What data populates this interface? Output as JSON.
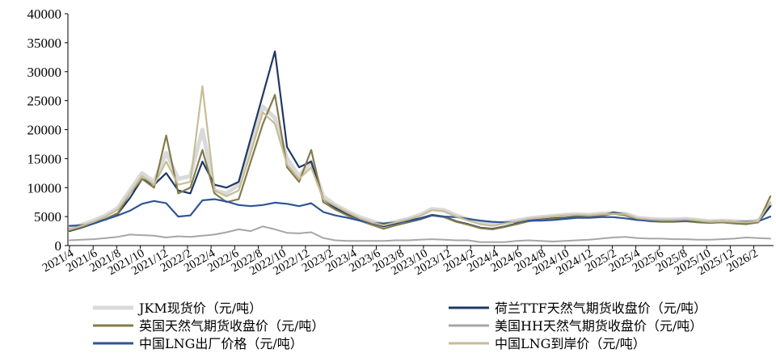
{
  "chart_data": {
    "type": "line",
    "title": "",
    "xlabel": "",
    "ylabel": "",
    "unit": "元/吨",
    "ylim": [
      0,
      40000
    ],
    "y_ticks": [
      "0",
      "5000",
      "10000",
      "15000",
      "20000",
      "25000",
      "30000",
      "35000",
      "40000"
    ],
    "x_tick_labels": [
      "2021/4",
      "2021/6",
      "2021/8",
      "2021/10",
      "2021/12",
      "2022/2",
      "2022/4",
      "2022/6",
      "2022/8",
      "2022/10",
      "2022/12",
      "2023/2",
      "2023/4",
      "2023/6",
      "2023/8",
      "2023/10",
      "2023/12",
      "2024/2",
      "2024/4",
      "2024/6",
      "2024/8",
      "2024/10",
      "2024/12",
      "2025/2",
      "2025/4",
      "2025/6",
      "2025/8",
      "2025/10",
      "2025/12",
      "2026/2"
    ],
    "x": [
      "2021/4",
      "2021/5",
      "2021/6",
      "2021/7",
      "2021/8",
      "2021/9",
      "2021/10",
      "2021/11",
      "2021/12",
      "2022/1",
      "2022/2",
      "2022/3",
      "2022/4",
      "2022/5",
      "2022/6",
      "2022/7",
      "2022/8",
      "2022/9",
      "2022/10",
      "2022/11",
      "2022/12",
      "2023/1",
      "2023/2",
      "2023/3",
      "2023/4",
      "2023/5",
      "2023/6",
      "2023/7",
      "2023/8",
      "2023/9",
      "2023/10",
      "2023/11",
      "2023/12",
      "2024/1",
      "2024/2",
      "2024/3",
      "2024/4",
      "2024/5",
      "2024/6",
      "2024/7",
      "2024/8",
      "2024/9",
      "2024/10",
      "2024/11",
      "2024/12",
      "2025/1",
      "2025/2",
      "2025/3",
      "2025/4",
      "2025/5",
      "2025/6",
      "2025/7",
      "2025/8",
      "2025/9",
      "2025/10",
      "2025/11",
      "2025/12",
      "2026/1",
      "2026/2"
    ],
    "series": [
      {
        "name": "JKM现货价（元/吨）",
        "color": "#d9d9d9",
        "width": 5,
        "values": [
          2900,
          3600,
          4300,
          5200,
          6500,
          9500,
          12500,
          11000,
          16000,
          11500,
          12000,
          20000,
          9500,
          9000,
          10500,
          17000,
          24000,
          22000,
          15000,
          12000,
          14500,
          8500,
          7000,
          5900,
          4900,
          4200,
          3700,
          4100,
          4600,
          5300,
          6300,
          6100,
          5200,
          4500,
          3900,
          3600,
          4000,
          4300,
          4700,
          4900,
          5100,
          5300,
          5400,
          5300,
          5500,
          5600,
          5500,
          4800,
          4600,
          4500,
          4500,
          4600,
          4400,
          4200,
          4300,
          4200,
          4100,
          4300,
          7000
        ]
      },
      {
        "name": "荷兰TTF天然气期货收盘价（元/吨）",
        "color": "#1f3864",
        "width": 2.2,
        "values": [
          2500,
          3100,
          3800,
          4500,
          5500,
          8200,
          11500,
          10500,
          12500,
          9500,
          9000,
          14500,
          10500,
          10000,
          11000,
          18500,
          26000,
          33500,
          17000,
          13500,
          14500,
          8000,
          6500,
          5400,
          4500,
          3900,
          3300,
          3800,
          4300,
          4700,
          5300,
          5000,
          4200,
          3700,
          3100,
          2900,
          3300,
          3800,
          4300,
          4500,
          4700,
          4800,
          5000,
          5000,
          5200,
          5700,
          5400,
          4600,
          4300,
          4200,
          4200,
          4300,
          4100,
          4000,
          4100,
          3900,
          3800,
          4100,
          6800
        ]
      },
      {
        "name": "英国天然气期货收盘价（元/吨）",
        "color": "#847b4c",
        "width": 2.2,
        "values": [
          2600,
          3200,
          3900,
          4600,
          5600,
          9000,
          11500,
          10000,
          19000,
          9000,
          10000,
          16500,
          9000,
          7500,
          8000,
          14500,
          21000,
          26000,
          13500,
          11000,
          16500,
          7500,
          6200,
          5200,
          4300,
          3600,
          2900,
          3500,
          4000,
          4500,
          5200,
          4900,
          4100,
          3600,
          3000,
          2800,
          3200,
          3700,
          4200,
          4400,
          4600,
          4700,
          4900,
          4900,
          5100,
          5500,
          5200,
          4500,
          4200,
          4100,
          4100,
          4200,
          4000,
          3900,
          4000,
          3800,
          3700,
          4000,
          8500
        ]
      },
      {
        "name": "美国HH天然气期货收盘价（元/吨）",
        "color": "#a6a6a6",
        "width": 2,
        "values": [
          900,
          1000,
          1100,
          1300,
          1500,
          1900,
          1800,
          1700,
          1400,
          1600,
          1500,
          1700,
          1900,
          2300,
          2800,
          2500,
          3300,
          2800,
          2200,
          2100,
          2300,
          1300,
          900,
          800,
          800,
          800,
          800,
          900,
          900,
          1000,
          1100,
          1000,
          900,
          900,
          600,
          600,
          600,
          800,
          900,
          800,
          700,
          800,
          900,
          1000,
          1200,
          1400,
          1500,
          1300,
          1200,
          1200,
          1100,
          1100,
          1000,
          1000,
          1100,
          1200,
          1400,
          1300,
          1200
        ]
      },
      {
        "name": "中国LNG出厂价格（元/吨）",
        "color": "#2e5597",
        "width": 2.2,
        "values": [
          3400,
          3500,
          3800,
          4500,
          5200,
          6000,
          7200,
          7700,
          7300,
          5000,
          5200,
          7800,
          8000,
          7600,
          7000,
          6800,
          7000,
          7400,
          7200,
          6800,
          7300,
          5800,
          5200,
          4800,
          4300,
          3900,
          3800,
          4000,
          4200,
          4600,
          5200,
          5000,
          4900,
          4600,
          4300,
          4100,
          4000,
          4100,
          4300,
          4300,
          4400,
          4600,
          4800,
          4800,
          4900,
          4900,
          4700,
          4400,
          4300,
          4300,
          4300,
          4300,
          4200,
          4100,
          4200,
          4100,
          4100,
          4200,
          5000
        ]
      },
      {
        "name": "中国LNG到岸价（元/吨）",
        "color": "#c7bd94",
        "width": 2.2,
        "values": [
          2800,
          3400,
          4100,
          5000,
          6200,
          9000,
          12000,
          10500,
          14500,
          10500,
          11000,
          27500,
          9500,
          8500,
          9500,
          16000,
          23000,
          21000,
          14000,
          11500,
          13500,
          8000,
          6800,
          5700,
          4700,
          4000,
          3500,
          4000,
          4500,
          5100,
          6100,
          5900,
          5000,
          4300,
          3700,
          3400,
          3800,
          4200,
          4600,
          4800,
          5000,
          5200,
          5300,
          5200,
          5400,
          5500,
          5400,
          4700,
          4500,
          4400,
          4400,
          4500,
          4300,
          4100,
          4200,
          4100,
          4000,
          4200,
          7500
        ]
      }
    ],
    "legend_position": "bottom"
  }
}
